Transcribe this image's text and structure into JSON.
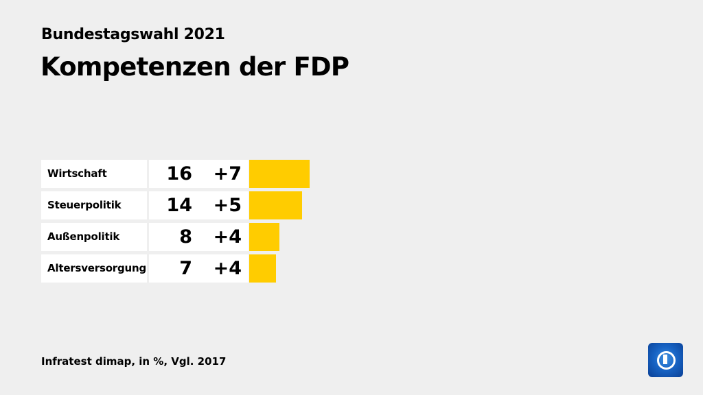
{
  "header": {
    "supertitle": "Bundestagswahl 2021",
    "title": "Kompetenzen der FDP"
  },
  "footer": {
    "source": "Infratest dimap, in %, Vgl. 2017"
  },
  "logo": {
    "name": "tagesschau-logo",
    "lettering": "1"
  },
  "colors": {
    "bar": "#ffcc00",
    "background": "#efefef",
    "cell": "#ffffff"
  },
  "chart_data": {
    "type": "bar",
    "orientation": "horizontal",
    "categories": [
      "Wirtschaft",
      "Steuerpolitik",
      "Außenpolitik",
      "Altersversorgung"
    ],
    "values": [
      16,
      14,
      8,
      7
    ],
    "changes": [
      "+7",
      "+5",
      "+4",
      "+4"
    ],
    "unit": "%"
  }
}
